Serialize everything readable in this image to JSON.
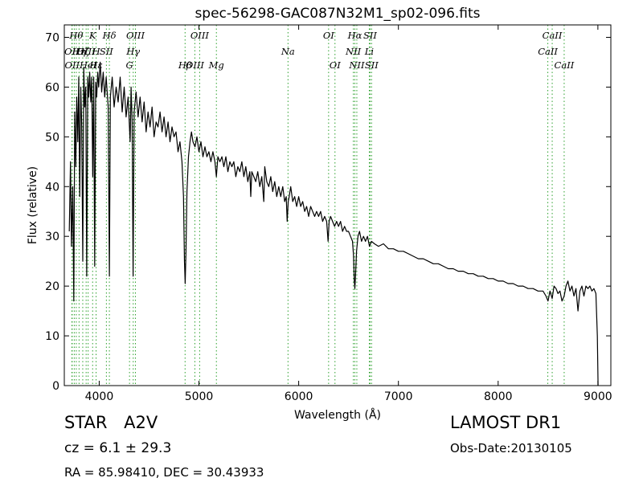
{
  "chart_data": {
    "type": "line",
    "title": "spec-56298-GAC087N32M1_sp02-096.fits",
    "xlabel": "Wavelength (Å)",
    "ylabel": "Flux (relative)",
    "xlim": [
      3650,
      9130
    ],
    "ylim": [
      0,
      72.5
    ],
    "xticks": [
      4000,
      5000,
      6000,
      7000,
      8000,
      9000
    ],
    "yticks": [
      0,
      10,
      20,
      30,
      40,
      50,
      60,
      70
    ],
    "grid": false,
    "line_color": "#000000",
    "marker_color": "#2ca02c",
    "series": [
      {
        "values": [
          [
            3700,
            31
          ],
          [
            3712,
            45
          ],
          [
            3722,
            28
          ],
          [
            3735,
            40
          ],
          [
            3745,
            17
          ],
          [
            3755,
            55
          ],
          [
            3765,
            44
          ],
          [
            3775,
            58
          ],
          [
            3785,
            49
          ],
          [
            3795,
            62
          ],
          [
            3805,
            38
          ],
          [
            3815,
            60
          ],
          [
            3825,
            52
          ],
          [
            3835,
            25
          ],
          [
            3845,
            64
          ],
          [
            3855,
            56
          ],
          [
            3865,
            60
          ],
          [
            3875,
            22
          ],
          [
            3885,
            62
          ],
          [
            3895,
            58
          ],
          [
            3905,
            63
          ],
          [
            3915,
            57
          ],
          [
            3925,
            62
          ],
          [
            3935,
            42
          ],
          [
            3945,
            62
          ],
          [
            3955,
            24
          ],
          [
            3965,
            61
          ],
          [
            3975,
            58
          ],
          [
            3985,
            63
          ],
          [
            3995,
            60
          ],
          [
            4010,
            65
          ],
          [
            4025,
            59
          ],
          [
            4040,
            63
          ],
          [
            4055,
            58
          ],
          [
            4070,
            62
          ],
          [
            4090,
            56
          ],
          [
            4102,
            22
          ],
          [
            4112,
            58
          ],
          [
            4130,
            62
          ],
          [
            4150,
            56
          ],
          [
            4170,
            60
          ],
          [
            4190,
            57
          ],
          [
            4210,
            62
          ],
          [
            4230,
            55
          ],
          [
            4250,
            60
          ],
          [
            4270,
            54
          ],
          [
            4290,
            58
          ],
          [
            4310,
            49
          ],
          [
            4320,
            60
          ],
          [
            4330,
            53
          ],
          [
            4340,
            22
          ],
          [
            4350,
            55
          ],
          [
            4370,
            59
          ],
          [
            4390,
            54
          ],
          [
            4410,
            58
          ],
          [
            4430,
            53
          ],
          [
            4450,
            57
          ],
          [
            4470,
            51
          ],
          [
            4490,
            55
          ],
          [
            4510,
            52
          ],
          [
            4530,
            56
          ],
          [
            4550,
            50
          ],
          [
            4570,
            53
          ],
          [
            4590,
            52
          ],
          [
            4610,
            55
          ],
          [
            4630,
            51
          ],
          [
            4650,
            54
          ],
          [
            4670,
            50
          ],
          [
            4690,
            53
          ],
          [
            4710,
            49
          ],
          [
            4730,
            52
          ],
          [
            4750,
            50
          ],
          [
            4770,
            51
          ],
          [
            4790,
            47
          ],
          [
            4810,
            49
          ],
          [
            4830,
            45
          ],
          [
            4845,
            38
          ],
          [
            4855,
            25
          ],
          [
            4862,
            20.5
          ],
          [
            4870,
            27
          ],
          [
            4880,
            39
          ],
          [
            4895,
            46
          ],
          [
            4910,
            49
          ],
          [
            4925,
            51
          ],
          [
            4940,
            49
          ],
          [
            4960,
            48
          ],
          [
            4980,
            50
          ],
          [
            5000,
            47
          ],
          [
            5020,
            49
          ],
          [
            5040,
            46
          ],
          [
            5060,
            48
          ],
          [
            5080,
            46
          ],
          [
            5100,
            47
          ],
          [
            5120,
            45
          ],
          [
            5140,
            47
          ],
          [
            5160,
            45
          ],
          [
            5175,
            42
          ],
          [
            5190,
            46
          ],
          [
            5210,
            45
          ],
          [
            5230,
            46
          ],
          [
            5250,
            44
          ],
          [
            5270,
            46
          ],
          [
            5290,
            43
          ],
          [
            5310,
            45
          ],
          [
            5330,
            44
          ],
          [
            5350,
            45
          ],
          [
            5370,
            42
          ],
          [
            5390,
            44
          ],
          [
            5410,
            43
          ],
          [
            5430,
            45
          ],
          [
            5450,
            42
          ],
          [
            5470,
            44
          ],
          [
            5490,
            41
          ],
          [
            5510,
            43
          ],
          [
            5520,
            38
          ],
          [
            5530,
            43
          ],
          [
            5550,
            42
          ],
          [
            5570,
            41
          ],
          [
            5590,
            43
          ],
          [
            5610,
            40
          ],
          [
            5630,
            42
          ],
          [
            5650,
            37
          ],
          [
            5660,
            44
          ],
          [
            5680,
            41
          ],
          [
            5700,
            40
          ],
          [
            5720,
            42
          ],
          [
            5740,
            39
          ],
          [
            5760,
            41
          ],
          [
            5780,
            38
          ],
          [
            5800,
            40
          ],
          [
            5820,
            38
          ],
          [
            5840,
            40
          ],
          [
            5860,
            37
          ],
          [
            5875,
            38
          ],
          [
            5885,
            33
          ],
          [
            5895,
            37
          ],
          [
            5905,
            38
          ],
          [
            5920,
            40
          ],
          [
            5940,
            37
          ],
          [
            5960,
            38
          ],
          [
            5980,
            36
          ],
          [
            6000,
            38
          ],
          [
            6020,
            36
          ],
          [
            6040,
            37
          ],
          [
            6060,
            35
          ],
          [
            6080,
            36
          ],
          [
            6100,
            34
          ],
          [
            6120,
            36
          ],
          [
            6140,
            35
          ],
          [
            6160,
            34
          ],
          [
            6180,
            35
          ],
          [
            6200,
            34
          ],
          [
            6220,
            35
          ],
          [
            6240,
            33
          ],
          [
            6260,
            34
          ],
          [
            6280,
            33
          ],
          [
            6295,
            29
          ],
          [
            6305,
            33
          ],
          [
            6320,
            34
          ],
          [
            6340,
            33
          ],
          [
            6360,
            32
          ],
          [
            6380,
            33
          ],
          [
            6400,
            32
          ],
          [
            6420,
            33
          ],
          [
            6440,
            31
          ],
          [
            6460,
            32
          ],
          [
            6480,
            31
          ],
          [
            6500,
            31
          ],
          [
            6520,
            30
          ],
          [
            6540,
            29
          ],
          [
            6550,
            26
          ],
          [
            6558,
            21
          ],
          [
            6563,
            19.5
          ],
          [
            6570,
            22
          ],
          [
            6580,
            27
          ],
          [
            6595,
            30
          ],
          [
            6610,
            31
          ],
          [
            6630,
            29
          ],
          [
            6650,
            30
          ],
          [
            6670,
            29
          ],
          [
            6690,
            30
          ],
          [
            6710,
            28
          ],
          [
            6730,
            29
          ],
          [
            6760,
            28.5
          ],
          [
            6800,
            28
          ],
          [
            6850,
            28.5
          ],
          [
            6900,
            27.5
          ],
          [
            6950,
            27.5
          ],
          [
            7000,
            27
          ],
          [
            7050,
            27
          ],
          [
            7100,
            26.5
          ],
          [
            7150,
            26
          ],
          [
            7200,
            25.5
          ],
          [
            7250,
            25.5
          ],
          [
            7300,
            25
          ],
          [
            7350,
            24.5
          ],
          [
            7400,
            24.5
          ],
          [
            7450,
            24
          ],
          [
            7500,
            23.5
          ],
          [
            7550,
            23.5
          ],
          [
            7600,
            23
          ],
          [
            7650,
            23
          ],
          [
            7700,
            22.5
          ],
          [
            7750,
            22.5
          ],
          [
            7800,
            22
          ],
          [
            7850,
            22
          ],
          [
            7900,
            21.5
          ],
          [
            7950,
            21.5
          ],
          [
            8000,
            21
          ],
          [
            8050,
            21
          ],
          [
            8100,
            20.5
          ],
          [
            8150,
            20.5
          ],
          [
            8200,
            20
          ],
          [
            8250,
            20
          ],
          [
            8300,
            19.5
          ],
          [
            8350,
            19.5
          ],
          [
            8400,
            19
          ],
          [
            8450,
            19
          ],
          [
            8480,
            18
          ],
          [
            8500,
            17
          ],
          [
            8520,
            19
          ],
          [
            8542,
            17.5
          ],
          [
            8560,
            20
          ],
          [
            8580,
            19.5
          ],
          [
            8600,
            18.5
          ],
          [
            8620,
            19
          ],
          [
            8640,
            17
          ],
          [
            8662,
            18
          ],
          [
            8680,
            20
          ],
          [
            8700,
            21
          ],
          [
            8720,
            19
          ],
          [
            8740,
            20
          ],
          [
            8760,
            18
          ],
          [
            8780,
            19.5
          ],
          [
            8800,
            15
          ],
          [
            8820,
            19
          ],
          [
            8840,
            20
          ],
          [
            8860,
            18
          ],
          [
            8880,
            20
          ],
          [
            8900,
            19.5
          ],
          [
            8920,
            20
          ],
          [
            8940,
            19
          ],
          [
            8960,
            19.5
          ],
          [
            8980,
            18.5
          ],
          [
            8995,
            10
          ],
          [
            9002,
            0
          ]
        ]
      }
    ],
    "lines": [
      {
        "x": 3726,
        "labels": [
          "OII"
        ]
      },
      {
        "x": 3729,
        "labels": [
          "OII"
        ]
      },
      {
        "x": 3750,
        "labels": []
      },
      {
        "x": 3770,
        "labels": [
          "Hθ"
        ]
      },
      {
        "x": 3798,
        "labels": [
          "Hη"
        ]
      },
      {
        "x": 3835,
        "labels": [
          "Hζ"
        ]
      },
      {
        "x": 3869,
        "labels": [
          "OIII"
        ]
      },
      {
        "x": 3889,
        "labels": [
          "HeI"
        ]
      },
      {
        "x": 3934,
        "labels": [
          "K"
        ]
      },
      {
        "x": 3969,
        "labels": [
          "H",
          "Hε"
        ]
      },
      {
        "x": 4072,
        "labels": [
          "SII"
        ]
      },
      {
        "x": 4102,
        "labels": [
          "Hδ"
        ]
      },
      {
        "x": 4304,
        "labels": [
          "G"
        ]
      },
      {
        "x": 4341,
        "labels": [
          "Hγ"
        ]
      },
      {
        "x": 4363,
        "labels": [
          "OIII"
        ]
      },
      {
        "x": 4861,
        "labels": [
          "Hβ"
        ]
      },
      {
        "x": 4959,
        "labels": [
          "OIII"
        ]
      },
      {
        "x": 5007,
        "labels": [
          "OIII"
        ]
      },
      {
        "x": 5175,
        "labels": [
          "Mg"
        ]
      },
      {
        "x": 5893,
        "labels": [
          "Na"
        ]
      },
      {
        "x": 6300,
        "labels": [
          "OI"
        ]
      },
      {
        "x": 6364,
        "labels": [
          "OI"
        ]
      },
      {
        "x": 6548,
        "labels": [
          "NII"
        ]
      },
      {
        "x": 6563,
        "labels": [
          "Hα"
        ]
      },
      {
        "x": 6583,
        "labels": [
          "NII"
        ]
      },
      {
        "x": 6708,
        "labels": [
          "Li"
        ]
      },
      {
        "x": 6716,
        "labels": [
          "SII"
        ]
      },
      {
        "x": 6731,
        "labels": [
          "SII"
        ]
      },
      {
        "x": 8498,
        "labels": [
          "CaII"
        ]
      },
      {
        "x": 8542,
        "labels": [
          "CaII"
        ]
      },
      {
        "x": 8662,
        "labels": [
          "CaII"
        ]
      }
    ]
  },
  "info": {
    "class_label": "STAR",
    "subclass_label": "A2V",
    "redshift_text": "cz = 6.1 ± 29.3",
    "coords_text": "RA = 85.98410, DEC = 30.43933",
    "survey_label": "LAMOST DR1",
    "obs_date_text": "Obs-Date:20130105"
  }
}
